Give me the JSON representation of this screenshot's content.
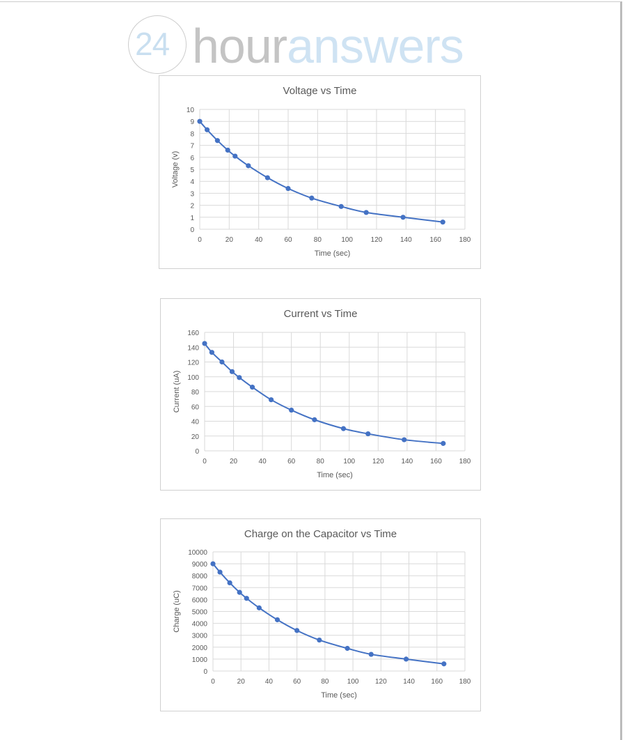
{
  "logo": {
    "number": "24",
    "word_part1": "hour",
    "word_part2": "answers"
  },
  "colors": {
    "series": "#4472c4",
    "grid": "#d9d9d9",
    "text": "#595959"
  },
  "chart_data": [
    {
      "type": "line",
      "title": "Voltage vs Time",
      "xlabel": "Time (sec)",
      "ylabel": "Voltage (v)",
      "xlim": [
        0,
        180
      ],
      "ylim": [
        0,
        10
      ],
      "xstep": 20,
      "ystep": 1,
      "grid": true,
      "markers": true,
      "smooth": true,
      "x": [
        0,
        5,
        12,
        19,
        24,
        33,
        46,
        60,
        76,
        96,
        113,
        138,
        165
      ],
      "y": [
        9,
        8.3,
        7.4,
        6.6,
        6.1,
        5.3,
        4.3,
        3.4,
        2.6,
        1.9,
        1.4,
        1.0,
        0.6
      ]
    },
    {
      "type": "line",
      "title": "Current vs Time",
      "xlabel": "Time (sec)",
      "ylabel": "Current (uA)",
      "xlim": [
        0,
        180
      ],
      "ylim": [
        0,
        160
      ],
      "xstep": 20,
      "ystep": 20,
      "grid": true,
      "markers": true,
      "smooth": true,
      "x": [
        0,
        5,
        12,
        19,
        24,
        33,
        46,
        60,
        76,
        96,
        113,
        138,
        165
      ],
      "y": [
        145,
        133,
        120,
        107,
        99,
        86,
        69,
        55,
        42,
        30,
        23,
        15,
        10
      ]
    },
    {
      "type": "line",
      "title": "Charge on the Capacitor vs Time",
      "xlabel": "Time (sec)",
      "ylabel": "Charge (uC)",
      "xlim": [
        0,
        180
      ],
      "ylim": [
        0,
        10000
      ],
      "xstep": 20,
      "ystep": 1000,
      "grid": true,
      "markers": true,
      "smooth": true,
      "x": [
        0,
        5,
        12,
        19,
        24,
        33,
        46,
        60,
        76,
        96,
        113,
        138,
        165
      ],
      "y": [
        9000,
        8300,
        7400,
        6600,
        6100,
        5300,
        4300,
        3400,
        2600,
        1900,
        1400,
        1000,
        600
      ]
    }
  ]
}
